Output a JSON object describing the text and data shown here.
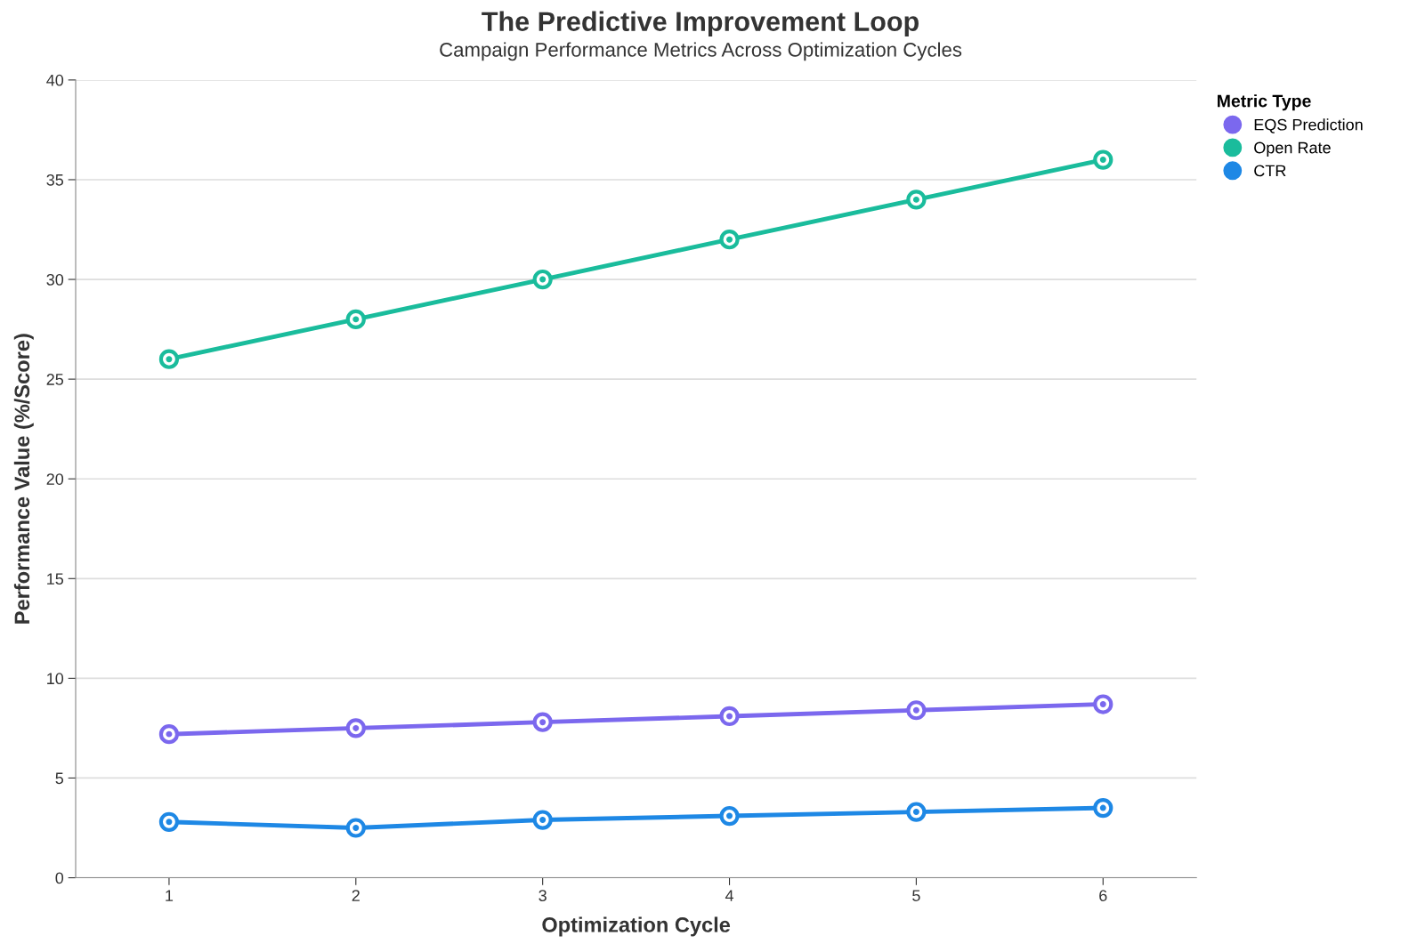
{
  "chart_data": {
    "type": "line",
    "title": "The Predictive Improvement Loop",
    "subtitle": "Campaign Performance Metrics Across Optimization Cycles",
    "xlabel": "Optimization Cycle",
    "ylabel": "Performance Value (%/Score)",
    "legend_title": "Metric Type",
    "x": [
      1,
      2,
      3,
      4,
      5,
      6
    ],
    "series": [
      {
        "name": "EQS Prediction",
        "color": "#7b68ee",
        "values": [
          7.2,
          7.5,
          7.8,
          8.1,
          8.4,
          8.7
        ]
      },
      {
        "name": "Open Rate",
        "color": "#1abc9c",
        "values": [
          26,
          28,
          30,
          32,
          34,
          36
        ]
      },
      {
        "name": "CTR",
        "color": "#1e88e5",
        "values": [
          2.8,
          2.5,
          2.9,
          3.1,
          3.3,
          3.5
        ]
      }
    ],
    "xlim": [
      0.5,
      6.5
    ],
    "xticks": [
      1,
      2,
      3,
      4,
      5,
      6
    ],
    "ylim": [
      0,
      40
    ],
    "yticks": [
      0,
      5,
      10,
      15,
      20,
      25,
      30,
      35,
      40
    ],
    "grid": "y",
    "legend": "top right",
    "marker": "circle",
    "line_style": "solid"
  }
}
